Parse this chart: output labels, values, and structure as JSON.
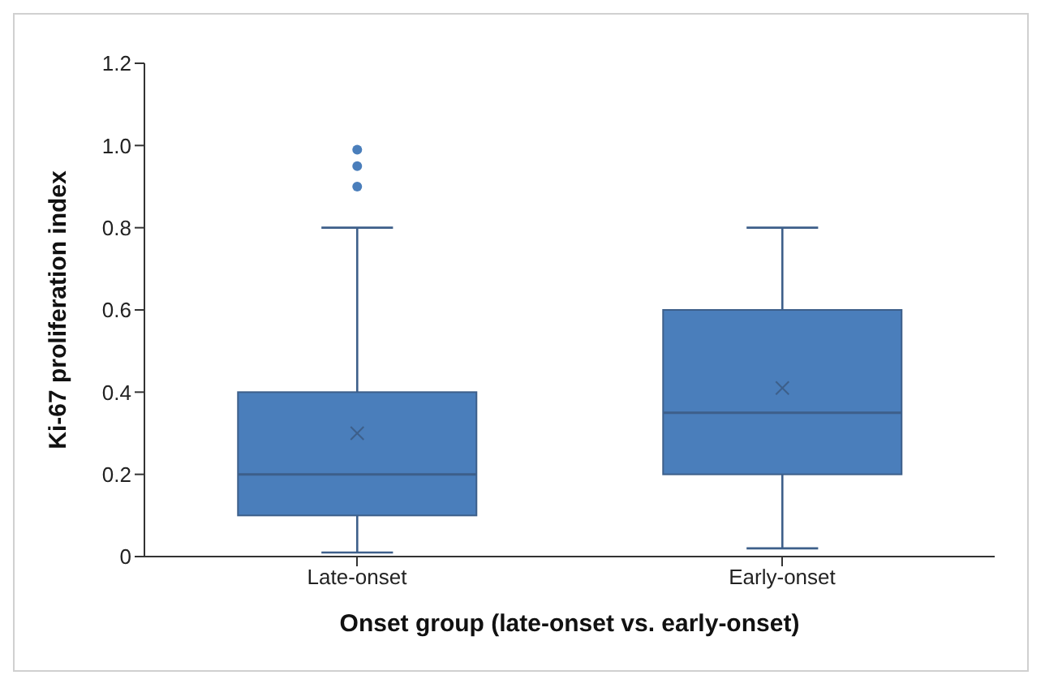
{
  "chart_data": {
    "type": "box",
    "xlabel": "Onset group (late-onset vs. early-onset)",
    "ylabel": "Ki-67 proliferation index",
    "categories": [
      "Late-onset",
      "Early-onset"
    ],
    "color": "#4a7ebb",
    "boxes": [
      {
        "low": 0.01,
        "q1": 0.1,
        "median": 0.2,
        "q3": 0.4,
        "high": 0.8,
        "mean": 0.3,
        "outliers": [
          0.9,
          0.95,
          0.99
        ]
      },
      {
        "low": 0.02,
        "q1": 0.2,
        "median": 0.35,
        "q3": 0.6,
        "high": 0.8,
        "mean": 0.41
      }
    ],
    "ylim": [
      0,
      1.2
    ],
    "yticks": [
      0,
      0.2,
      0.4,
      0.6,
      {
        "value": 0.8,
        "label": "0.8"
      },
      {
        "value": 1,
        "label": "1.0"
      },
      {
        "value": 1.2,
        "label": "1.2"
      }
    ]
  }
}
